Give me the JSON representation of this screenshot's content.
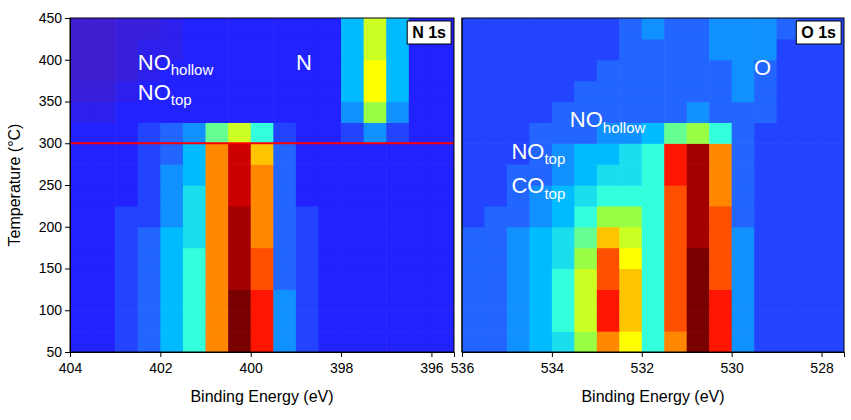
{
  "chart_data": [
    {
      "type": "heatmap",
      "title": "N 1s",
      "xlabel": "Binding Energy (eV)",
      "ylabel": "Temperature (°C)",
      "xlim": [
        404,
        395.5
      ],
      "ylim": [
        50,
        450
      ],
      "xticks": [
        404,
        402,
        400,
        398,
        396
      ],
      "yticks": [
        50,
        100,
        150,
        200,
        250,
        300,
        350,
        400,
        450
      ],
      "zlim": [
        0,
        10
      ],
      "x": [
        403.75,
        403.25,
        402.75,
        402.25,
        401.75,
        401.25,
        400.75,
        400.25,
        399.75,
        399.25,
        398.75,
        398.25,
        397.75,
        397.25,
        396.75,
        396.25,
        395.75
      ],
      "y": [
        62.5,
        87.5,
        112.5,
        137.5,
        162.5,
        187.5,
        212.5,
        237.5,
        262.5,
        287.5,
        312.5,
        337.5,
        362.5,
        387.5,
        412.5,
        437.5
      ],
      "values": [
        [
          1,
          1,
          1.5,
          2,
          3,
          4,
          7,
          10,
          8,
          2.5,
          1.5,
          1,
          1,
          1,
          1,
          1,
          1
        ],
        [
          1,
          1,
          1.5,
          2,
          3,
          4,
          7,
          10,
          8,
          2.5,
          1.5,
          1,
          1,
          1,
          1,
          1,
          1
        ],
        [
          1,
          1,
          1.5,
          2,
          3,
          4,
          7,
          10,
          8,
          2.5,
          1.5,
          1,
          1,
          1,
          1,
          1,
          1
        ],
        [
          1,
          1,
          1.5,
          2,
          3,
          4,
          7,
          9.5,
          7.5,
          2,
          1.5,
          1,
          1,
          1,
          1,
          1,
          1
        ],
        [
          1,
          1,
          1.5,
          2,
          3,
          4,
          7,
          9.5,
          7.5,
          2,
          1.5,
          1,
          1,
          1,
          1,
          1,
          1
        ],
        [
          1,
          1,
          1.5,
          2,
          3,
          3.5,
          7,
          9.5,
          7,
          2,
          1.5,
          1,
          1,
          1,
          1,
          1,
          1
        ],
        [
          1,
          1,
          1.5,
          1.5,
          2.5,
          3.5,
          7,
          9.5,
          7,
          2,
          1.5,
          1,
          1,
          1,
          1,
          1,
          1
        ],
        [
          1,
          1,
          1,
          1.5,
          2.5,
          3.5,
          7,
          9,
          7,
          2,
          1,
          1,
          1,
          1,
          1,
          1,
          1
        ],
        [
          1,
          1,
          1,
          1.5,
          2.5,
          3,
          7,
          9,
          7,
          2,
          1,
          1,
          1,
          1,
          1,
          1,
          1
        ],
        [
          1,
          1,
          1,
          1.5,
          2,
          3,
          7,
          9,
          6.5,
          2,
          1,
          1,
          1,
          1,
          1,
          1,
          1
        ],
        [
          1,
          1,
          1,
          1.5,
          2,
          2.5,
          4.5,
          5.5,
          4,
          1.5,
          1,
          1,
          1.5,
          2.5,
          1.5,
          1,
          1
        ],
        [
          0.8,
          0.8,
          1,
          1,
          1,
          1,
          1,
          1,
          1,
          1,
          1,
          1,
          2.5,
          5,
          2.5,
          1,
          1
        ],
        [
          0.6,
          0.6,
          0.8,
          1,
          1,
          1,
          1,
          1,
          1,
          1,
          1,
          1,
          3,
          6,
          3,
          1,
          1
        ],
        [
          0.5,
          0.5,
          0.6,
          0.8,
          1,
          1,
          1,
          1,
          1,
          1,
          1,
          1,
          3,
          6,
          3,
          1,
          1
        ],
        [
          0.5,
          0.5,
          0.6,
          0.8,
          0.8,
          1,
          1,
          1,
          1,
          1,
          1,
          1,
          3,
          5.5,
          3,
          1,
          1
        ],
        [
          0.5,
          0.5,
          0.6,
          0.6,
          0.8,
          1,
          1,
          1,
          1,
          1,
          1,
          1,
          3,
          5.5,
          3,
          1,
          1
        ]
      ],
      "hlines": [
        {
          "y": 300,
          "color": "#ff0000"
        }
      ],
      "annotations": [
        {
          "text": "NO",
          "subscript": "hollow",
          "x": 402.5,
          "y": 388
        },
        {
          "text": "NO",
          "subscript": "top",
          "x": 402.5,
          "y": 352
        },
        {
          "text": "N",
          "x": 399,
          "y": 388
        }
      ]
    },
    {
      "type": "heatmap",
      "title": "O 1s",
      "xlabel": "Binding Energy (eV)",
      "xlim": [
        536,
        527.5
      ],
      "ylim": [
        50,
        450
      ],
      "xticks": [
        536,
        534,
        532,
        530,
        528
      ],
      "tick_labels": "x",
      "zlim": [
        0,
        10
      ],
      "x": [
        535.75,
        535.25,
        534.75,
        534.25,
        533.75,
        533.25,
        532.75,
        532.25,
        531.75,
        531.25,
        530.75,
        530.25,
        529.75,
        529.25,
        528.75,
        528.25,
        527.75
      ],
      "y": [
        62.5,
        87.5,
        112.5,
        137.5,
        162.5,
        187.5,
        212.5,
        237.5,
        262.5,
        287.5,
        312.5,
        337.5,
        362.5,
        387.5,
        412.5,
        437.5
      ],
      "values": [
        [
          2,
          2,
          2.5,
          3,
          3.5,
          5,
          7,
          6,
          4,
          7,
          10,
          8,
          2.5,
          1.5,
          1.5,
          1.5,
          1.5
        ],
        [
          2,
          2,
          2.5,
          3,
          4,
          5.5,
          8,
          6.5,
          4,
          7.5,
          10,
          8,
          2.5,
          1.5,
          1.5,
          1.5,
          1.5
        ],
        [
          2,
          2,
          2.5,
          3,
          4,
          5.5,
          8,
          6.5,
          4,
          7.5,
          10,
          8,
          2.5,
          1.5,
          1.5,
          1.5,
          1.5
        ],
        [
          2,
          2,
          2.5,
          3,
          4,
          5.5,
          7.5,
          6.5,
          4,
          7.5,
          10,
          7.5,
          2.5,
          1.5,
          1.5,
          1.5,
          1.5
        ],
        [
          2,
          2,
          2.5,
          3,
          3.5,
          5,
          7.5,
          6,
          4,
          7.5,
          10,
          7.5,
          2.5,
          1.5,
          1.5,
          1.5,
          1.5
        ],
        [
          2,
          2,
          2.5,
          3,
          3.5,
          4.5,
          6.5,
          5.5,
          4,
          7.5,
          9.5,
          7.5,
          2.5,
          1.5,
          1.5,
          1.5,
          1.5
        ],
        [
          1.5,
          2,
          2,
          2.5,
          3,
          4,
          5,
          5,
          4,
          7.5,
          9.5,
          7.5,
          2,
          1.5,
          1.5,
          1.5,
          1.5
        ],
        [
          1.5,
          1.5,
          2,
          2.5,
          3,
          3.5,
          4,
          4,
          4,
          7.5,
          9.5,
          7,
          2,
          1.5,
          1.5,
          1.5,
          1.5
        ],
        [
          1.5,
          1.5,
          2,
          2,
          2.5,
          3,
          3.5,
          3.5,
          4,
          8,
          9.5,
          7,
          2,
          1.5,
          1.5,
          1.5,
          1.5
        ],
        [
          1.5,
          1.5,
          1.5,
          2,
          2.5,
          3,
          3,
          3.5,
          4,
          8,
          9.5,
          7,
          2,
          1.5,
          1.5,
          1.5,
          1.5
        ],
        [
          1.5,
          1.5,
          1.5,
          2,
          2,
          2,
          2.5,
          2.5,
          3,
          4.5,
          5,
          4,
          2,
          1.5,
          1.5,
          1.5,
          1.5
        ],
        [
          1.5,
          1.5,
          1.5,
          1.5,
          2,
          2,
          2,
          2,
          2,
          2,
          2.5,
          2,
          2,
          2,
          1.5,
          1.5,
          1.5
        ],
        [
          1.5,
          1.5,
          1.5,
          1.5,
          1.5,
          2,
          2,
          2,
          2,
          2,
          2,
          2,
          2.5,
          2,
          1.5,
          1.5,
          1.5
        ],
        [
          1.5,
          1.5,
          1.5,
          1.5,
          1.5,
          1.5,
          2,
          2,
          2,
          2,
          2,
          2,
          2.5,
          2,
          1.5,
          1.5,
          1.5
        ],
        [
          1.5,
          1.5,
          1.5,
          1.5,
          1.5,
          1.5,
          1.5,
          2,
          2,
          2,
          2,
          2.5,
          2.5,
          2.5,
          1.5,
          1.5,
          1.5
        ],
        [
          1.5,
          1.5,
          1.5,
          1.5,
          1.5,
          1.5,
          1.5,
          2,
          2.5,
          2,
          2,
          2.5,
          2.5,
          2.5,
          2,
          1.5,
          1.5
        ]
      ],
      "annotations": [
        {
          "text": "NO",
          "subscript": "hollow",
          "x": 533.6,
          "y": 319
        },
        {
          "text": "NO",
          "subscript": "top",
          "x": 534.9,
          "y": 281
        },
        {
          "text": "CO",
          "subscript": "top",
          "x": 534.9,
          "y": 240
        },
        {
          "text": "O",
          "x": 529.5,
          "y": 382
        }
      ]
    }
  ]
}
